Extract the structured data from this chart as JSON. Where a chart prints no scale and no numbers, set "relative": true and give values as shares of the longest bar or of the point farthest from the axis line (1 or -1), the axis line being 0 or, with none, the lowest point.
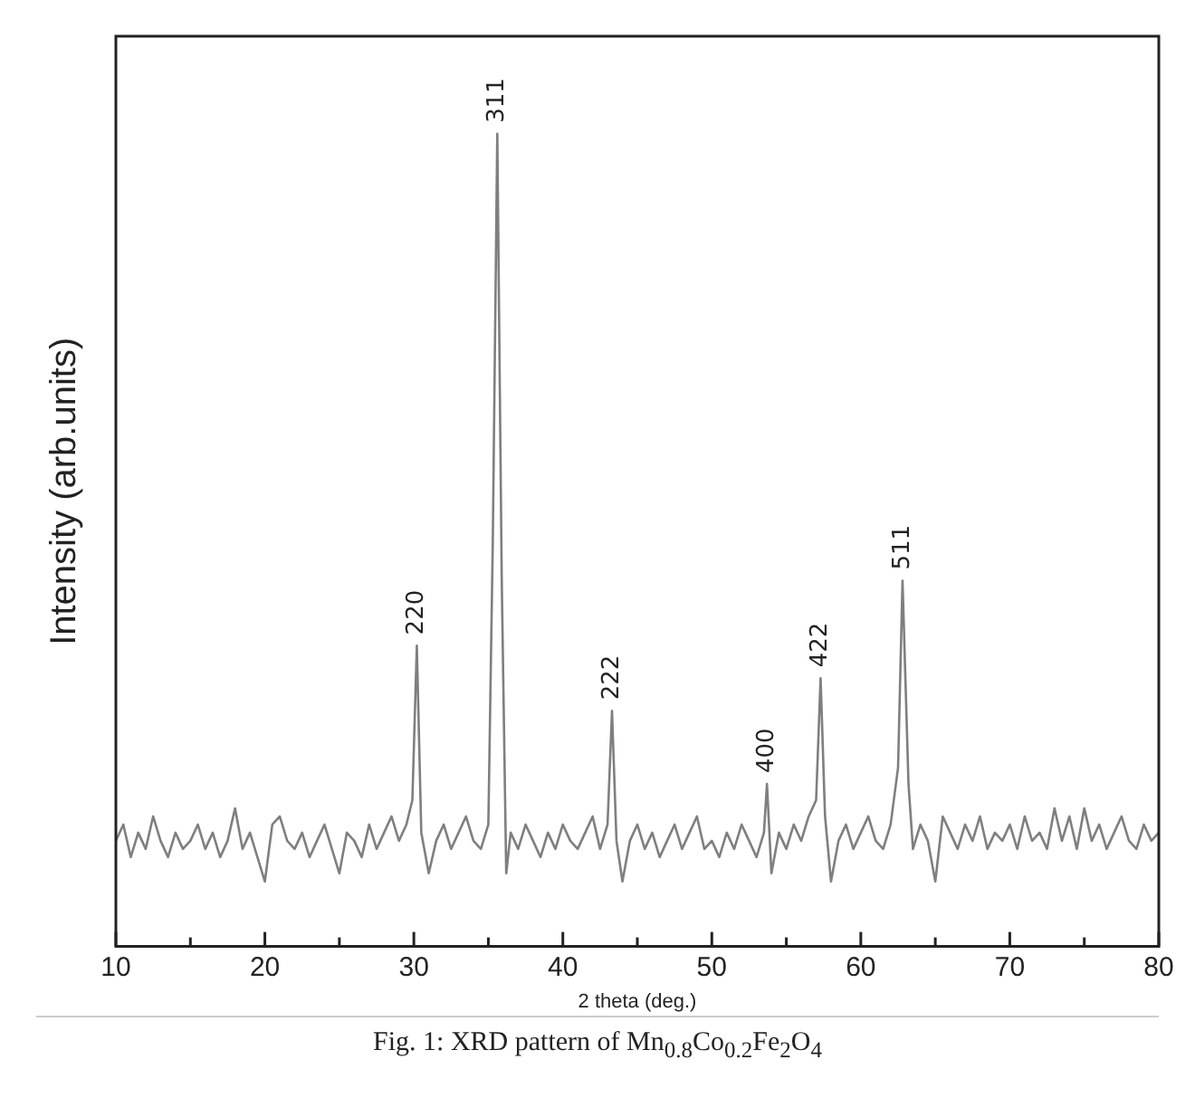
{
  "chart_data": {
    "type": "line",
    "relative": true,
    "xlabel": "2 theta (deg.)",
    "ylabel": "Intensity (arb.units)",
    "xlim": [
      10,
      80
    ],
    "xticks": [
      10,
      {
        "value": 15,
        "label": null
      },
      20,
      {
        "value": 25,
        "label": null
      },
      30,
      {
        "value": 35,
        "label": null
      },
      40,
      {
        "value": 45,
        "label": null
      },
      50,
      {
        "value": 55,
        "label": null
      },
      60,
      {
        "value": 65,
        "label": null
      },
      70,
      {
        "value": 75,
        "label": null
      },
      80
    ],
    "grid": false,
    "legend": false,
    "marker": "none",
    "line_style": "solid",
    "series": [
      {
        "color": "#7f7f7f",
        "x": [
          10,
          10.5,
          11,
          11.5,
          12,
          12.5,
          13,
          13.5,
          14,
          14.5,
          15,
          15.5,
          16,
          16.5,
          17,
          17.5,
          18,
          18.5,
          19,
          19.5,
          20,
          20.5,
          21,
          21.5,
          22,
          22.5,
          23,
          23.5,
          24,
          24.5,
          25,
          25.5,
          26,
          26.5,
          27,
          27.5,
          28,
          28.5,
          29,
          29.5,
          29.9,
          30.2,
          30.5,
          31,
          31.5,
          32,
          32.5,
          33,
          33.5,
          34,
          34.5,
          35,
          35.3,
          35.6,
          35.9,
          36.2,
          36.5,
          37,
          37.5,
          38,
          38.5,
          39,
          39.5,
          40,
          40.5,
          41,
          41.5,
          42,
          42.5,
          43,
          43.3,
          43.6,
          44,
          44.5,
          45,
          45.5,
          46,
          46.5,
          47,
          47.5,
          48,
          48.5,
          49,
          49.5,
          50,
          50.5,
          51,
          51.5,
          52,
          52.5,
          53,
          53.5,
          53.7,
          54,
          54.5,
          55,
          55.5,
          56,
          56.5,
          57,
          57.3,
          57.6,
          58,
          58.5,
          59,
          59.5,
          60,
          60.5,
          61,
          61.5,
          62,
          62.5,
          62.8,
          63.2,
          63.5,
          64,
          64.5,
          65,
          65.5,
          66,
          66.5,
          67,
          67.5,
          68,
          68.5,
          69,
          69.5,
          70,
          70.5,
          71,
          71.5,
          72,
          72.5,
          73,
          73.5,
          74,
          74.5,
          75,
          75.5,
          76,
          76.5,
          77,
          77.5,
          78,
          78.5,
          79,
          79.5,
          80
        ],
        "values": [
          0.13,
          0.15,
          0.11,
          0.14,
          0.12,
          0.16,
          0.13,
          0.11,
          0.14,
          0.12,
          0.13,
          0.15,
          0.12,
          0.14,
          0.11,
          0.13,
          0.17,
          0.12,
          0.14,
          0.11,
          0.08,
          0.15,
          0.16,
          0.13,
          0.12,
          0.14,
          0.11,
          0.13,
          0.15,
          0.12,
          0.09,
          0.14,
          0.13,
          0.11,
          0.15,
          0.12,
          0.14,
          0.16,
          0.13,
          0.15,
          0.18,
          0.37,
          0.14,
          0.09,
          0.13,
          0.15,
          0.12,
          0.14,
          0.16,
          0.13,
          0.12,
          0.15,
          0.5,
          1,
          0.45,
          0.09,
          0.14,
          0.12,
          0.15,
          0.13,
          0.11,
          0.14,
          0.12,
          0.15,
          0.13,
          0.12,
          0.14,
          0.16,
          0.12,
          0.15,
          0.29,
          0.13,
          0.08,
          0.13,
          0.15,
          0.12,
          0.14,
          0.11,
          0.13,
          0.15,
          0.12,
          0.14,
          0.16,
          0.12,
          0.13,
          0.11,
          0.14,
          0.12,
          0.15,
          0.13,
          0.11,
          0.14,
          0.2,
          0.09,
          0.14,
          0.12,
          0.15,
          0.13,
          0.16,
          0.18,
          0.33,
          0.16,
          0.08,
          0.13,
          0.15,
          0.12,
          0.14,
          0.16,
          0.13,
          0.12,
          0.15,
          0.22,
          0.45,
          0.2,
          0.12,
          0.15,
          0.13,
          0.08,
          0.16,
          0.14,
          0.12,
          0.15,
          0.13,
          0.16,
          0.12,
          0.14,
          0.13,
          0.15,
          0.12,
          0.16,
          0.13,
          0.14,
          0.12,
          0.17,
          0.13,
          0.16,
          0.12,
          0.17,
          0.13,
          0.15,
          0.12,
          0.14,
          0.16,
          0.13,
          0.12,
          0.15,
          0.13,
          0.14
        ]
      }
    ],
    "annotations": [
      {
        "text": "220",
        "x": 30.2,
        "y": 0.37
      },
      {
        "text": "311",
        "x": 35.6,
        "y": 1
      },
      {
        "text": "222",
        "x": 43.3,
        "y": 0.29
      },
      {
        "text": "400",
        "x": 53.7,
        "y": 0.2
      },
      {
        "text": "422",
        "x": 57.3,
        "y": 0.33
      },
      {
        "text": "511",
        "x": 62.8,
        "y": 0.45
      },
      "Fig. 1:  XRD pattern of Mn$_{0.8}$Co$_{0.2}$Fe$_{2}$O$_{4}$"
    ]
  }
}
